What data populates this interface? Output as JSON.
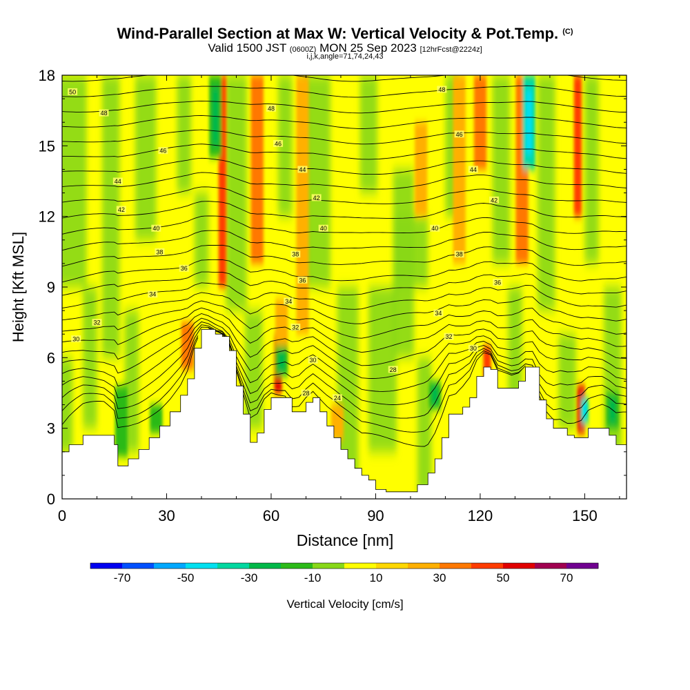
{
  "title": {
    "main": "Wind-Parallel Section at Max W: Vertical Velocity & Pot.Temp.",
    "main_suffix": "(C)",
    "valid_prefix": "Valid 1500 JST",
    "valid_utc": "(0600Z)",
    "valid_date": "MON 25 Sep 2023",
    "forecast": "[12hrFcst@2224z]",
    "indices": "i,j,k,angle=71,74,24,43"
  },
  "chart_data": {
    "type": "heatmap",
    "title": "Wind-Parallel Section at Max W: Vertical Velocity & Pot.Temp.",
    "xlabel": "Distance [nm]",
    "ylabel": "Height [Kft MSL]",
    "xlim": [
      0,
      162
    ],
    "ylim": [
      0,
      18
    ],
    "xticks": [
      0,
      30,
      60,
      90,
      120,
      150
    ],
    "yticks": [
      0,
      3,
      6,
      9,
      12,
      15,
      18
    ],
    "colorbar": {
      "label": "Vertical Velocity [cm/s]",
      "tick_labels": [
        -70,
        -50,
        -30,
        -10,
        10,
        30,
        50,
        70
      ],
      "bins": [
        {
          "from": -80,
          "to": -70,
          "color": "#0000f0"
        },
        {
          "from": -70,
          "to": -60,
          "color": "#0050ff"
        },
        {
          "from": -60,
          "to": -50,
          "color": "#00a8ff"
        },
        {
          "from": -50,
          "to": -40,
          "color": "#00e0f0"
        },
        {
          "from": -40,
          "to": -30,
          "color": "#00d8a0"
        },
        {
          "from": -30,
          "to": -20,
          "color": "#00b848"
        },
        {
          "from": -20,
          "to": -10,
          "color": "#2cba18"
        },
        {
          "from": -10,
          "to": 0,
          "color": "#88d818"
        },
        {
          "from": 0,
          "to": 10,
          "color": "#ffff00"
        },
        {
          "from": 10,
          "to": 20,
          "color": "#ffd800"
        },
        {
          "from": 20,
          "to": 30,
          "color": "#ffb000"
        },
        {
          "from": 30,
          "to": 40,
          "color": "#ff7800"
        },
        {
          "from": 40,
          "to": 50,
          "color": "#ff3c00"
        },
        {
          "from": 50,
          "to": 60,
          "color": "#e00000"
        },
        {
          "from": 60,
          "to": 70,
          "color": "#a00050"
        },
        {
          "from": 70,
          "to": 80,
          "color": "#700090"
        }
      ]
    },
    "terrain": {
      "x": [
        0,
        2,
        6,
        12,
        15,
        16,
        19,
        22,
        25,
        28,
        31,
        34,
        36,
        38,
        40,
        42,
        44,
        46,
        48,
        50,
        52,
        54,
        56,
        58,
        60,
        62,
        64,
        66,
        68,
        70,
        72,
        74,
        76,
        78,
        80,
        82,
        84,
        86,
        88,
        90,
        93,
        96,
        99,
        102,
        105,
        107,
        109,
        111,
        113,
        115,
        117,
        119,
        121,
        123,
        125,
        127,
        129,
        131,
        133,
        135,
        137,
        139,
        141,
        143,
        145,
        147,
        149,
        151,
        153,
        155,
        157,
        159,
        162
      ],
      "height": [
        2.0,
        2.3,
        2.7,
        2.7,
        2.3,
        1.4,
        1.7,
        2.1,
        2.6,
        3.1,
        3.7,
        4.4,
        5.1,
        6.4,
        7.2,
        7.2,
        7.0,
        6.9,
        6.3,
        4.8,
        3.6,
        2.4,
        2.8,
        3.8,
        4.3,
        4.3,
        4.3,
        3.7,
        3.7,
        4.1,
        4.3,
        3.7,
        3.1,
        2.6,
        2.1,
        1.7,
        1.3,
        1.0,
        0.8,
        0.4,
        0.3,
        0.3,
        0.3,
        0.6,
        1.1,
        1.7,
        2.6,
        3.6,
        3.6,
        3.9,
        4.3,
        5.2,
        5.6,
        5.5,
        4.7,
        4.7,
        4.7,
        5.0,
        5.6,
        5.6,
        4.2,
        3.4,
        3.0,
        3.0,
        2.7,
        2.6,
        2.6,
        3.0,
        3.0,
        3.0,
        2.7,
        2.3,
        2.3
      ]
    },
    "isentropes": {
      "field": "Potential temperature (C)",
      "interval": 1,
      "labels": [
        {
          "value": 50,
          "x": 3,
          "y": 17.3
        },
        {
          "value": 48,
          "x": 12,
          "y": 16.4
        },
        {
          "value": 46,
          "x": 29,
          "y": 14.8
        },
        {
          "value": 44,
          "x": 16,
          "y": 13.5
        },
        {
          "value": 42,
          "x": 17,
          "y": 12.3
        },
        {
          "value": 40,
          "x": 27,
          "y": 11.5
        },
        {
          "value": 38,
          "x": 28,
          "y": 10.5
        },
        {
          "value": 36,
          "x": 35,
          "y": 9.8
        },
        {
          "value": 34,
          "x": 26,
          "y": 8.7
        },
        {
          "value": 32,
          "x": 10,
          "y": 7.5
        },
        {
          "value": 30,
          "x": 4,
          "y": 6.8
        },
        {
          "value": 48,
          "x": 60,
          "y": 16.6
        },
        {
          "value": 46,
          "x": 62,
          "y": 15.1
        },
        {
          "value": 44,
          "x": 69,
          "y": 14.0
        },
        {
          "value": 42,
          "x": 73,
          "y": 12.8
        },
        {
          "value": 40,
          "x": 75,
          "y": 11.5
        },
        {
          "value": 38,
          "x": 67,
          "y": 10.4
        },
        {
          "value": 36,
          "x": 69,
          "y": 9.3
        },
        {
          "value": 34,
          "x": 65,
          "y": 8.4
        },
        {
          "value": 32,
          "x": 67,
          "y": 7.3
        },
        {
          "value": 30,
          "x": 72,
          "y": 5.9
        },
        {
          "value": 28,
          "x": 70,
          "y": 4.5
        },
        {
          "value": 24,
          "x": 79,
          "y": 4.3
        },
        {
          "value": 28,
          "x": 95,
          "y": 5.5
        },
        {
          "value": 48,
          "x": 109,
          "y": 17.4
        },
        {
          "value": 46,
          "x": 114,
          "y": 15.5
        },
        {
          "value": 44,
          "x": 118,
          "y": 14.0
        },
        {
          "value": 42,
          "x": 124,
          "y": 12.7
        },
        {
          "value": 40,
          "x": 107,
          "y": 11.5
        },
        {
          "value": 38,
          "x": 114,
          "y": 10.4
        },
        {
          "value": 36,
          "x": 125,
          "y": 9.2
        },
        {
          "value": 34,
          "x": 108,
          "y": 7.9
        },
        {
          "value": 32,
          "x": 111,
          "y": 6.9
        },
        {
          "value": 30,
          "x": 118,
          "y": 6.4
        }
      ]
    },
    "updraft_maxima": [
      {
        "x": 36,
        "range": [
          20,
          40
        ],
        "ylo": 5.5,
        "yhi": 7.5
      },
      {
        "x": 46,
        "range": [
          30,
          50
        ],
        "ylo": 9.0,
        "yhi": 18
      },
      {
        "x": 56,
        "range": [
          20,
          40
        ],
        "ylo": 10.0,
        "yhi": 18
      },
      {
        "x": 62,
        "range": [
          40,
          60
        ],
        "ylo": 4.5,
        "yhi": 7.0
      },
      {
        "x": 63,
        "range": [
          20,
          30
        ],
        "ylo": 6.5,
        "yhi": 8.5
      },
      {
        "x": 69,
        "range": [
          20,
          30
        ],
        "ylo": 7.0,
        "yhi": 18
      },
      {
        "x": 79,
        "range": [
          10,
          30
        ],
        "ylo": 2.5,
        "yhi": 4.0
      },
      {
        "x": 103,
        "range": [
          10,
          30
        ],
        "ylo": 12.0,
        "yhi": 16.0
      },
      {
        "x": 114,
        "range": [
          20,
          30
        ],
        "ylo": 10.0,
        "yhi": 18
      },
      {
        "x": 120,
        "range": [
          20,
          40
        ],
        "ylo": 14.0,
        "yhi": 18
      },
      {
        "x": 122,
        "range": [
          30,
          50
        ],
        "ylo": 5.0,
        "yhi": 6.5
      },
      {
        "x": 132,
        "range": [
          20,
          40
        ],
        "ylo": 10.0,
        "yhi": 18
      },
      {
        "x": 148,
        "range": [
          30,
          50
        ],
        "ylo": 12.0,
        "yhi": 18
      },
      {
        "x": 149,
        "range": [
          40,
          60
        ],
        "ylo": 2.8,
        "yhi": 4.8
      }
    ],
    "downdraft_minima": [
      {
        "x": 17,
        "range": [
          -20,
          -10
        ],
        "ylo": 1.8,
        "yhi": 4.8
      },
      {
        "x": 27,
        "range": [
          -20,
          -10
        ],
        "ylo": 2.8,
        "yhi": 4.0
      },
      {
        "x": 44,
        "range": [
          -30,
          -10
        ],
        "ylo": 14.5,
        "yhi": 18
      },
      {
        "x": 63,
        "range": [
          -30,
          -10
        ],
        "ylo": 5.2,
        "yhi": 6.5
      },
      {
        "x": 107,
        "range": [
          -30,
          -10
        ],
        "ylo": 3.8,
        "yhi": 5.0
      },
      {
        "x": 134,
        "range": [
          -50,
          -20
        ],
        "ylo": 14.0,
        "yhi": 18
      },
      {
        "x": 150,
        "range": [
          -50,
          -30
        ],
        "ylo": 3.2,
        "yhi": 4.3
      },
      {
        "x": 158,
        "range": [
          -30,
          -10
        ],
        "ylo": 3.0,
        "yhi": 4.5
      }
    ]
  }
}
